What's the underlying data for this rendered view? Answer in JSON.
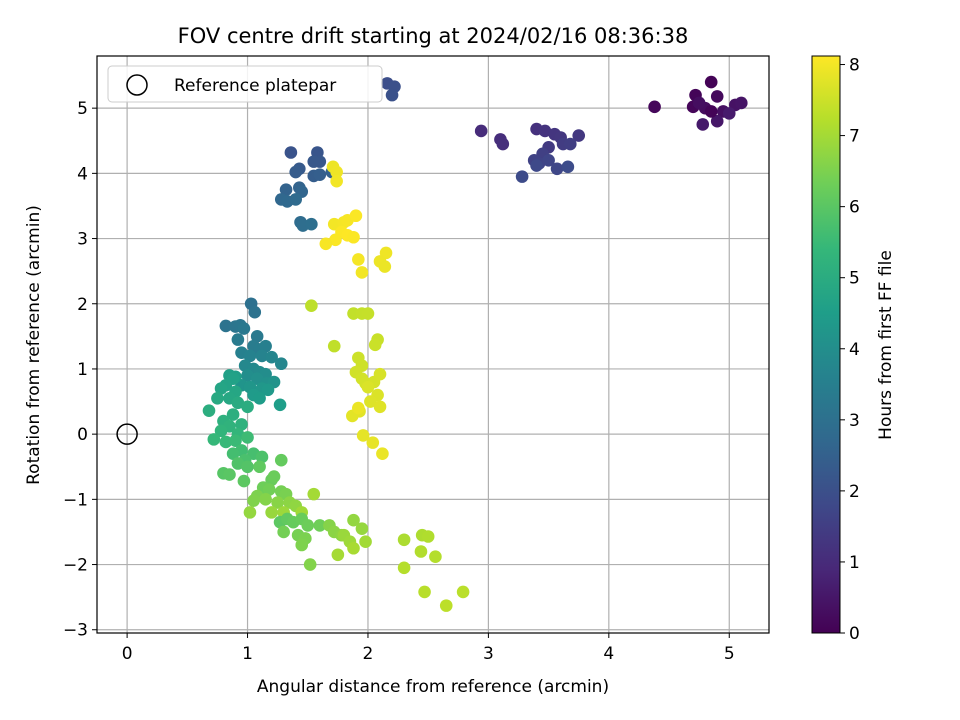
{
  "chart_data": {
    "type": "scatter",
    "title": "FOV centre drift starting at 2024/02/16 08:36:38",
    "xlabel": "Angular distance from reference (arcmin)",
    "ylabel": "Rotation from reference (arcmin)",
    "xlim": [
      -0.25,
      5.33
    ],
    "ylim": [
      -3.05,
      5.8
    ],
    "xticks": [
      0,
      1,
      2,
      3,
      4,
      5
    ],
    "xtick_labels": [
      "0",
      "1",
      "2",
      "3",
      "4",
      "5"
    ],
    "yticks": [
      -3,
      -2,
      -1,
      0,
      1,
      2,
      3,
      4,
      5
    ],
    "ytick_labels": [
      "−3",
      "−2",
      "−1",
      "0",
      "1",
      "2",
      "3",
      "4",
      "5"
    ],
    "grid": true,
    "legend": {
      "position": "top-left",
      "entries": [
        {
          "label": "Reference platepar",
          "marker": "open-circle",
          "x": 0,
          "y": 0
        }
      ]
    },
    "colorbar": {
      "label": "Hours from first FF file",
      "min": 0,
      "max": 8.12,
      "ticks": [
        0,
        1,
        2,
        3,
        4,
        5,
        6,
        7,
        8
      ],
      "tick_labels": [
        "0",
        "1",
        "2",
        "3",
        "4",
        "5",
        "6",
        "7",
        "8"
      ],
      "colormap": "viridis",
      "stops": [
        "#440154",
        "#482878",
        "#3e4989",
        "#31688e",
        "#26828e",
        "#1f9e89",
        "#35b779",
        "#6ece58",
        "#b5de2b",
        "#fde725"
      ]
    },
    "series": [
      {
        "points": [
          [
            4.38,
            5.02,
            0.15
          ],
          [
            4.72,
            5.2,
            0.1
          ],
          [
            4.85,
            5.4,
            0.05
          ],
          [
            4.9,
            5.18,
            0.2
          ],
          [
            4.8,
            5.0,
            0.25
          ],
          [
            4.7,
            5.02,
            0.12
          ],
          [
            4.75,
            5.08,
            0.3
          ],
          [
            4.95,
            4.95,
            0.35
          ],
          [
            5.05,
            5.05,
            0.4
          ],
          [
            5.1,
            5.08,
            0.45
          ],
          [
            4.9,
            4.8,
            0.5
          ],
          [
            4.78,
            4.75,
            0.55
          ],
          [
            5.0,
            4.92,
            0.6
          ],
          [
            4.85,
            4.95,
            0.08
          ]
        ]
      },
      {
        "points": [
          [
            2.94,
            4.65,
            1.0
          ],
          [
            3.1,
            4.52,
            1.05
          ],
          [
            3.12,
            4.45,
            1.1
          ],
          [
            3.4,
            4.68,
            1.15
          ],
          [
            3.47,
            4.65,
            1.2
          ],
          [
            3.55,
            4.6,
            1.25
          ],
          [
            3.6,
            4.55,
            1.3
          ],
          [
            3.75,
            4.58,
            1.35
          ],
          [
            3.5,
            4.4,
            1.4
          ],
          [
            3.62,
            4.45,
            1.45
          ],
          [
            3.68,
            4.45,
            1.5
          ],
          [
            3.45,
            4.3,
            1.55
          ],
          [
            3.38,
            4.2,
            1.6
          ],
          [
            3.42,
            4.15,
            1.65
          ],
          [
            3.5,
            4.2,
            1.7
          ],
          [
            3.57,
            4.07,
            1.75
          ],
          [
            3.4,
            4.12,
            1.8
          ],
          [
            3.28,
            3.95,
            1.85
          ],
          [
            3.66,
            4.1,
            1.9
          ]
        ]
      },
      {
        "points": [
          [
            2.16,
            5.38,
            1.95
          ],
          [
            2.22,
            5.33,
            2.0
          ],
          [
            2.2,
            5.2,
            2.05
          ],
          [
            1.36,
            4.32,
            2.1
          ],
          [
            1.58,
            4.32,
            2.15
          ],
          [
            1.6,
            4.18,
            2.2
          ],
          [
            1.55,
            4.18,
            2.25
          ],
          [
            1.43,
            4.07,
            2.3
          ],
          [
            1.4,
            4.02,
            2.35
          ],
          [
            1.55,
            3.96,
            2.4
          ],
          [
            1.6,
            3.98,
            2.45
          ],
          [
            1.7,
            4.02,
            2.5
          ],
          [
            1.32,
            3.75,
            2.55
          ],
          [
            1.43,
            3.78,
            2.6
          ],
          [
            1.45,
            3.72,
            2.65
          ],
          [
            1.28,
            3.6,
            2.7
          ],
          [
            1.33,
            3.57,
            2.75
          ],
          [
            1.4,
            3.6,
            2.8
          ],
          [
            1.44,
            3.25,
            2.85
          ],
          [
            1.46,
            3.2,
            2.9
          ],
          [
            1.53,
            3.22,
            2.95
          ]
        ]
      },
      {
        "points": [
          [
            1.03,
            2.0,
            3.0
          ],
          [
            1.06,
            1.87,
            3.05
          ],
          [
            0.82,
            1.66,
            3.1
          ],
          [
            0.9,
            1.65,
            3.15
          ],
          [
            0.94,
            1.67,
            3.2
          ],
          [
            0.97,
            1.62,
            3.25
          ],
          [
            1.08,
            1.5,
            3.3
          ],
          [
            0.92,
            1.45,
            3.35
          ],
          [
            1.05,
            1.35,
            3.4
          ],
          [
            1.1,
            1.3,
            3.45
          ],
          [
            1.15,
            1.35,
            3.5
          ],
          [
            0.95,
            1.25,
            3.55
          ],
          [
            1.02,
            1.2,
            3.6
          ],
          [
            1.12,
            1.2,
            3.65
          ],
          [
            1.2,
            1.18,
            3.7
          ],
          [
            1.28,
            1.08,
            3.75
          ],
          [
            0.98,
            1.05,
            3.8
          ],
          [
            1.05,
            1.0,
            3.85
          ],
          [
            1.1,
            0.95,
            3.9
          ],
          [
            1.15,
            0.92,
            3.95
          ],
          [
            1.0,
            0.9,
            4.0
          ],
          [
            1.08,
            0.85,
            4.05
          ],
          [
            1.16,
            0.78,
            4.1
          ],
          [
            1.22,
            0.8,
            4.15
          ],
          [
            0.95,
            0.75,
            4.2
          ],
          [
            1.02,
            0.72,
            4.25
          ],
          [
            1.12,
            0.7,
            4.3
          ],
          [
            1.17,
            0.68,
            4.35
          ],
          [
            1.05,
            0.6,
            4.4
          ],
          [
            1.1,
            0.55,
            4.45
          ],
          [
            1.27,
            0.45,
            4.5
          ],
          [
            0.9,
            0.88,
            4.55
          ]
        ]
      },
      {
        "points": [
          [
            0.85,
            0.9,
            4.6
          ],
          [
            0.88,
            0.85,
            4.65
          ],
          [
            0.82,
            0.75,
            4.7
          ],
          [
            0.78,
            0.7,
            4.75
          ],
          [
            0.9,
            0.65,
            4.8
          ],
          [
            0.85,
            0.55,
            4.85
          ],
          [
            0.75,
            0.55,
            4.9
          ],
          [
            0.92,
            0.48,
            4.95
          ],
          [
            1.0,
            0.42,
            5.0
          ],
          [
            0.68,
            0.36,
            5.05
          ],
          [
            0.88,
            0.3,
            5.1
          ],
          [
            0.8,
            0.2,
            5.15
          ],
          [
            0.95,
            0.15,
            5.2
          ],
          [
            0.85,
            0.12,
            5.25
          ],
          [
            0.78,
            0.05,
            5.3
          ],
          [
            0.92,
            0.0,
            5.35
          ],
          [
            0.72,
            -0.08,
            5.4
          ],
          [
            0.82,
            -0.12,
            5.45
          ],
          [
            0.9,
            -0.1,
            5.5
          ],
          [
            1.0,
            -0.05,
            5.55
          ],
          [
            0.95,
            -0.25,
            5.6
          ],
          [
            0.88,
            -0.3,
            5.65
          ],
          [
            1.05,
            -0.3,
            5.7
          ],
          [
            0.98,
            -0.4,
            5.75
          ],
          [
            1.12,
            -0.35,
            5.8
          ],
          [
            0.92,
            -0.45,
            5.85
          ],
          [
            1.0,
            -0.5,
            5.9
          ],
          [
            0.8,
            -0.6,
            5.95
          ],
          [
            0.85,
            -0.62,
            6.0
          ],
          [
            0.97,
            -0.72,
            6.05
          ]
        ]
      },
      {
        "points": [
          [
            1.1,
            -0.5,
            6.1
          ],
          [
            1.28,
            -0.4,
            6.15
          ],
          [
            1.2,
            -0.7,
            6.2
          ],
          [
            1.22,
            -0.65,
            6.25
          ],
          [
            1.13,
            -0.82,
            6.3
          ],
          [
            1.18,
            -0.85,
            6.35
          ],
          [
            1.28,
            -0.88,
            6.4
          ],
          [
            1.32,
            -0.92,
            6.45
          ],
          [
            1.08,
            -0.95,
            6.5
          ],
          [
            1.05,
            -1.02,
            6.55
          ],
          [
            1.15,
            -1.0,
            6.6
          ],
          [
            1.25,
            -1.05,
            6.65
          ],
          [
            1.35,
            -1.05,
            6.7
          ],
          [
            1.4,
            -1.1,
            6.75
          ],
          [
            1.02,
            -1.2,
            6.8
          ],
          [
            1.2,
            -1.2,
            6.85
          ],
          [
            1.3,
            -1.2,
            6.9
          ],
          [
            1.45,
            -1.2,
            6.95
          ],
          [
            1.55,
            -0.92,
            7.0
          ],
          [
            1.27,
            -1.35,
            6.05
          ],
          [
            1.33,
            -1.3,
            6.12
          ],
          [
            1.38,
            -1.35,
            6.18
          ],
          [
            1.45,
            -1.3,
            6.22
          ],
          [
            1.5,
            -1.4,
            6.28
          ],
          [
            1.6,
            -1.4,
            6.32
          ],
          [
            1.3,
            -1.5,
            6.38
          ],
          [
            1.42,
            -1.55,
            6.42
          ],
          [
            1.48,
            -1.6,
            6.48
          ],
          [
            1.45,
            -1.7,
            6.52
          ],
          [
            1.52,
            -2.0,
            6.58
          ],
          [
            1.68,
            -1.4,
            6.62
          ],
          [
            1.72,
            -1.5,
            6.68
          ],
          [
            1.78,
            -1.55,
            6.72
          ],
          [
            1.88,
            -1.32,
            6.78
          ],
          [
            1.95,
            -1.45,
            6.82
          ],
          [
            1.8,
            -1.55,
            6.88
          ],
          [
            1.85,
            -1.65,
            6.92
          ],
          [
            1.98,
            -1.65,
            6.98
          ],
          [
            1.75,
            -1.85,
            7.02
          ],
          [
            1.88,
            -1.75,
            7.05
          ]
        ]
      },
      {
        "points": [
          [
            2.3,
            -1.62,
            7.1
          ],
          [
            2.45,
            -1.55,
            7.12
          ],
          [
            2.5,
            -1.57,
            7.15
          ],
          [
            2.44,
            -1.8,
            7.18
          ],
          [
            2.56,
            -1.88,
            7.2
          ],
          [
            2.3,
            -2.05,
            7.22
          ],
          [
            2.47,
            -2.42,
            7.25
          ],
          [
            2.79,
            -2.42,
            7.28
          ],
          [
            2.65,
            -2.63,
            7.3
          ],
          [
            1.53,
            1.97,
            7.32
          ],
          [
            1.72,
            1.35,
            7.35
          ],
          [
            1.88,
            1.85,
            7.38
          ],
          [
            1.95,
            1.85,
            7.4
          ],
          [
            2.0,
            1.85,
            7.42
          ],
          [
            2.08,
            1.45,
            7.45
          ],
          [
            2.06,
            1.37,
            7.48
          ],
          [
            1.92,
            1.17,
            7.5
          ],
          [
            1.95,
            1.05,
            7.52
          ],
          [
            1.9,
            0.95,
            7.55
          ],
          [
            1.95,
            0.85,
            7.58
          ],
          [
            1.98,
            0.78,
            7.6
          ],
          [
            2.05,
            0.8,
            7.62
          ],
          [
            2.1,
            0.92,
            7.65
          ],
          [
            2.0,
            0.72,
            7.68
          ],
          [
            2.08,
            0.6,
            7.7
          ],
          [
            2.02,
            0.5,
            7.72
          ],
          [
            2.1,
            0.42,
            7.75
          ],
          [
            1.93,
            0.35,
            7.78
          ],
          [
            1.87,
            0.28,
            7.8
          ],
          [
            1.96,
            -0.02,
            7.82
          ],
          [
            2.04,
            -0.13,
            7.85
          ],
          [
            2.12,
            -0.3,
            7.88
          ],
          [
            1.92,
            0.4,
            7.9
          ]
        ]
      },
      {
        "points": [
          [
            1.71,
            4.1,
            7.92
          ],
          [
            1.74,
            4.02,
            7.95
          ],
          [
            1.74,
            3.88,
            7.98
          ],
          [
            1.72,
            3.22,
            8.0
          ],
          [
            1.8,
            3.25,
            8.02
          ],
          [
            1.83,
            3.28,
            8.05
          ],
          [
            1.9,
            3.35,
            8.08
          ],
          [
            1.78,
            3.1,
            8.1
          ],
          [
            1.83,
            3.05,
            8.12
          ],
          [
            1.88,
            3.02,
            8.1
          ],
          [
            1.73,
            2.98,
            8.08
          ],
          [
            1.65,
            2.92,
            8.05
          ],
          [
            1.92,
            2.68,
            8.02
          ],
          [
            1.95,
            2.48,
            7.98
          ],
          [
            2.15,
            2.78,
            7.95
          ],
          [
            2.1,
            2.65,
            7.92
          ],
          [
            2.14,
            2.57,
            7.9
          ]
        ]
      }
    ]
  }
}
